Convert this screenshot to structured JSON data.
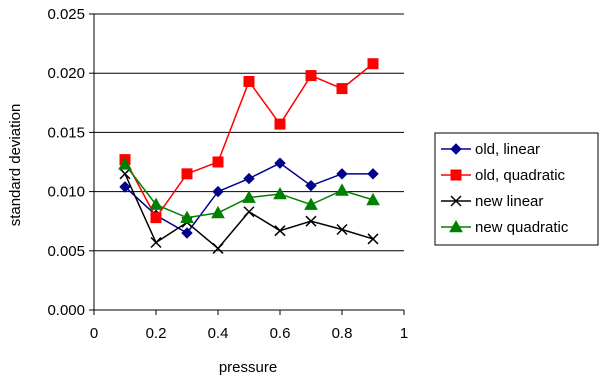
{
  "chart_data": {
    "type": "line",
    "title": "",
    "xlabel": "pressure",
    "ylabel": "standard deviation",
    "xlim": [
      0,
      1
    ],
    "ylim": [
      0,
      0.025
    ],
    "x_ticks": [
      0,
      0.2,
      0.4,
      0.6,
      0.8,
      1
    ],
    "x_tick_labels": [
      "0",
      "0.2",
      "0.4",
      "0.6",
      "0.8",
      "1"
    ],
    "y_ticks": [
      0,
      0.005,
      0.01,
      0.015,
      0.02,
      0.025
    ],
    "y_tick_labels": [
      "0.000",
      "0.005",
      "0.010",
      "0.015",
      "0.020",
      "0.025"
    ],
    "grid": "horizontal",
    "legend_position": "right",
    "x": [
      0.1,
      0.2,
      0.3,
      0.4,
      0.5,
      0.6,
      0.7,
      0.8,
      0.9
    ],
    "series": [
      {
        "name": "old, linear",
        "color": "#00008B",
        "marker": "diamond",
        "values": [
          0.0104,
          0.008,
          0.0065,
          0.01,
          0.0111,
          0.0124,
          0.0105,
          0.0115,
          0.0115
        ]
      },
      {
        "name": "old, quadratic",
        "color": "#FF0000",
        "marker": "square",
        "values": [
          0.0127,
          0.0078,
          0.0115,
          0.0125,
          0.0193,
          0.0157,
          0.0198,
          0.0187,
          0.0208
        ]
      },
      {
        "name": "new linear",
        "color": "#000000",
        "marker": "x",
        "values": [
          0.0115,
          0.0057,
          0.0074,
          0.0052,
          0.0083,
          0.0067,
          0.0075,
          0.0068,
          0.006
        ]
      },
      {
        "name": "new quadratic",
        "color": "#008000",
        "marker": "triangle",
        "values": [
          0.0123,
          0.0089,
          0.0078,
          0.0082,
          0.0095,
          0.0098,
          0.0089,
          0.0101,
          0.0093
        ]
      }
    ]
  }
}
